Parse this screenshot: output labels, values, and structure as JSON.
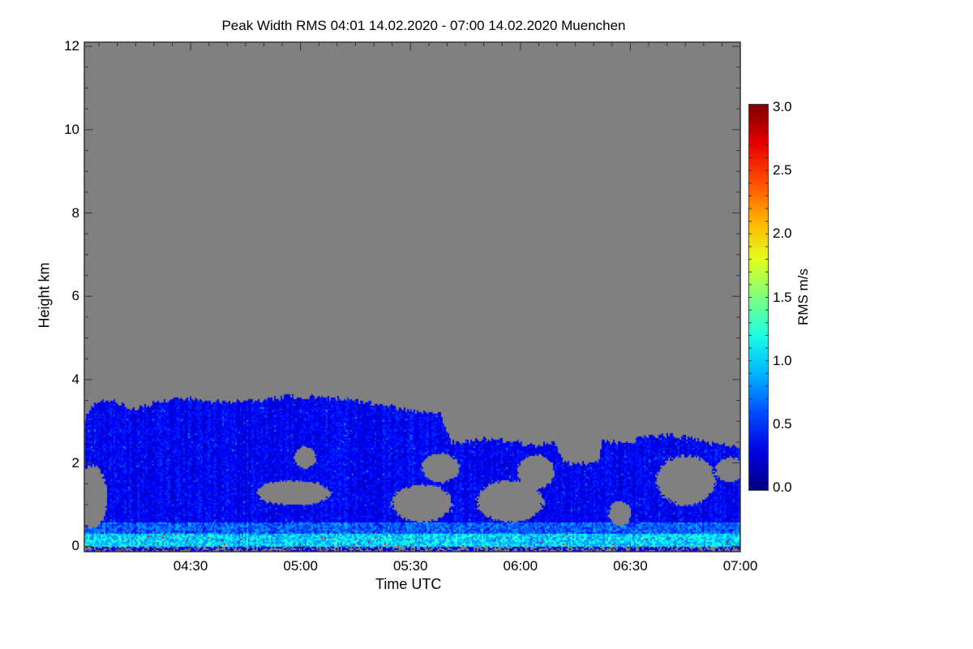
{
  "chart_data": {
    "type": "heatmap",
    "title": "Peak Width RMS   04:01 14.02.2020 - 07:00 14.02.2020 Muenchen",
    "xlabel": "Time UTC",
    "ylabel": "Height km",
    "colorbar_label": "RMS m/s",
    "x_start": "04:01",
    "x_end": "07:00",
    "xlim_minutes_from_start": [
      0,
      179
    ],
    "ylim": [
      -0.13,
      12.1
    ],
    "x_ticks": [
      {
        "label": "04:30",
        "minutes": 29
      },
      {
        "label": "05:00",
        "minutes": 59
      },
      {
        "label": "05:30",
        "minutes": 89
      },
      {
        "label": "06:00",
        "minutes": 119
      },
      {
        "label": "06:30",
        "minutes": 149
      },
      {
        "label": "07:00",
        "minutes": 179
      }
    ],
    "y_ticks": [
      0,
      2,
      4,
      6,
      8,
      10,
      12
    ],
    "colorbar": {
      "range": [
        0.0,
        3.0
      ],
      "ticks": [
        "0.0",
        "0.5",
        "1.0",
        "1.5",
        "2.0",
        "2.5",
        "3.0"
      ],
      "colormap": "jet"
    },
    "no_data_color": "#808080",
    "cloud_top_profile_km": [
      [
        0,
        3.1
      ],
      [
        3,
        3.5
      ],
      [
        8,
        3.5
      ],
      [
        13,
        3.3
      ],
      [
        17,
        3.4
      ],
      [
        25,
        3.6
      ],
      [
        35,
        3.5
      ],
      [
        45,
        3.5
      ],
      [
        55,
        3.6
      ],
      [
        65,
        3.6
      ],
      [
        75,
        3.5
      ],
      [
        83,
        3.4
      ],
      [
        90,
        3.25
      ],
      [
        97,
        3.2
      ],
      [
        100,
        2.5
      ],
      [
        110,
        2.6
      ],
      [
        118,
        2.5
      ],
      [
        122,
        2.45
      ],
      [
        128,
        2.5
      ],
      [
        131,
        2.0
      ],
      [
        140,
        2.0
      ],
      [
        141,
        2.55
      ],
      [
        149,
        2.5
      ],
      [
        151,
        2.65
      ],
      [
        160,
        2.7
      ],
      [
        170,
        2.5
      ],
      [
        179,
        2.4
      ]
    ],
    "clear_regions": [
      {
        "t": 2,
        "h": 1.2,
        "dt": 4,
        "dh": 0.75
      },
      {
        "t": 57,
        "h": 1.3,
        "dt": 10,
        "dh": 0.3
      },
      {
        "t": 60,
        "h": 2.15,
        "dt": 3,
        "dh": 0.25
      },
      {
        "t": 92,
        "h": 1.05,
        "dt": 8,
        "dh": 0.45
      },
      {
        "t": 97,
        "h": 1.9,
        "dt": 5,
        "dh": 0.35
      },
      {
        "t": 116,
        "h": 1.1,
        "dt": 9,
        "dh": 0.5
      },
      {
        "t": 123,
        "h": 1.8,
        "dt": 5,
        "dh": 0.4
      },
      {
        "t": 164,
        "h": 1.6,
        "dt": 8,
        "dh": 0.6
      },
      {
        "t": 176,
        "h": 1.85,
        "dt": 4,
        "dh": 0.3
      },
      {
        "t": 146,
        "h": 0.8,
        "dt": 3,
        "dh": 0.3
      }
    ],
    "typical_values": {
      "cloud_body": 0.35,
      "near_ground": 1.0,
      "max_near_ground": 2.6
    }
  }
}
